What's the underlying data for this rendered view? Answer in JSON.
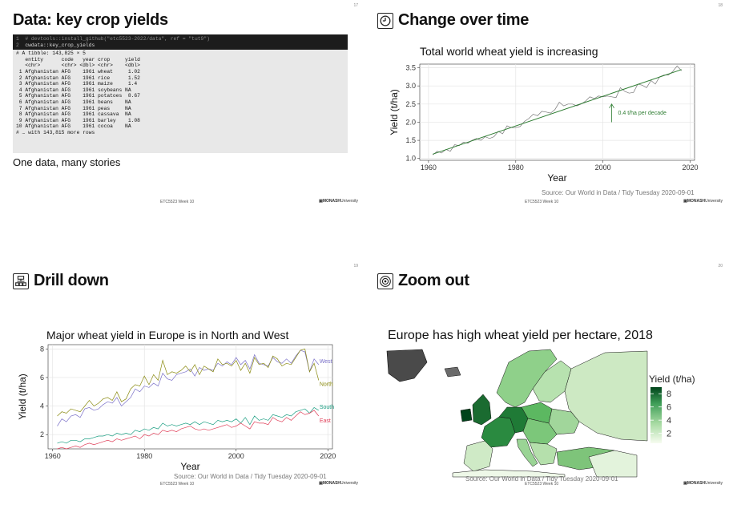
{
  "footer_text": "ETC5523 Week 10",
  "logo_text": "MONASH",
  "logo_uni": "University",
  "slides": [
    {
      "number": "17",
      "title": "Data: key crop yields",
      "code_cmd": [
        {
          "num": "1",
          "text": "# devtools::install_github(\"etc5523-2022/data\", ref = \"tut9\")"
        },
        {
          "num": "2",
          "text": "cwdata::key_crop_yields"
        }
      ],
      "output": [
        "# A tibble: 143,825 × 5",
        "   entity      code   year crop     yield",
        "   <chr>       <chr> <dbl> <chr>    <dbl>",
        " 1 Afghanistan AFG    1961 wheat     1.02",
        " 2 Afghanistan AFG    1961 rice      1.52",
        " 3 Afghanistan AFG    1961 maize     1.4",
        " 4 Afghanistan AFG    1961 soybeans NA",
        " 5 Afghanistan AFG    1961 potatoes  8.67",
        " 6 Afghanistan AFG    1961 beans    NA",
        " 7 Afghanistan AFG    1961 peas     NA",
        " 8 Afghanistan AFG    1961 cassava  NA",
        " 9 Afghanistan AFG    1961 barley    1.08",
        "10 Afghanistan AFG    1961 cocoa    NA",
        "# … with 143,815 more rows"
      ],
      "subtitle": "One data, many stories"
    },
    {
      "number": "18",
      "title": "Change over time",
      "icon": "clock-icon",
      "source": "Source: Our World in Data / Tidy Tuesday 2020-09-01"
    },
    {
      "number": "19",
      "title": "Drill down",
      "icon": "hierarchy-icon",
      "source": "Source: Our World in Data / Tidy Tuesday 2020-09-01"
    },
    {
      "number": "20",
      "title": "Zoom out",
      "icon": "target-icon",
      "source": "Source: Our World in Data / Tidy Tuesday 2020-09-01"
    }
  ],
  "chart_data": [
    {
      "type": "line",
      "title": "Total world wheat yield is increasing",
      "xlabel": "Year",
      "ylabel": "Yield (t/ha)",
      "xlim": [
        1958,
        2021
      ],
      "ylim": [
        0.95,
        3.6
      ],
      "xticks": [
        1960,
        1980,
        2000,
        2020
      ],
      "yticks": [
        1.0,
        1.5,
        2.0,
        2.5,
        3.0,
        3.5
      ],
      "grid": true,
      "series": [
        {
          "color": "#777777",
          "x": [
            1961,
            1962,
            1963,
            1964,
            1965,
            1966,
            1967,
            1968,
            1969,
            1970,
            1971,
            1972,
            1973,
            1974,
            1975,
            1976,
            1977,
            1978,
            1979,
            1980,
            1981,
            1982,
            1983,
            1984,
            1985,
            1986,
            1987,
            1988,
            1989,
            1990,
            1991,
            1992,
            1993,
            1994,
            1995,
            1996,
            1997,
            1998,
            1999,
            2000,
            2001,
            2002,
            2003,
            2004,
            2005,
            2006,
            2007,
            2008,
            2009,
            2010,
            2011,
            2012,
            2013,
            2014,
            2015,
            2016,
            2017,
            2018
          ],
          "values": [
            1.1,
            1.2,
            1.15,
            1.25,
            1.2,
            1.38,
            1.35,
            1.45,
            1.42,
            1.5,
            1.55,
            1.5,
            1.6,
            1.55,
            1.6,
            1.75,
            1.68,
            1.9,
            1.85,
            1.85,
            1.88,
            2.02,
            2.1,
            2.22,
            2.18,
            2.3,
            2.28,
            2.25,
            2.35,
            2.55,
            2.45,
            2.5,
            2.5,
            2.45,
            2.5,
            2.58,
            2.7,
            2.65,
            2.72,
            2.7,
            2.72,
            2.7,
            2.68,
            2.95,
            2.85,
            2.8,
            2.82,
            3.05,
            3.02,
            2.95,
            3.15,
            3.05,
            3.25,
            3.3,
            3.3,
            3.4,
            3.55,
            3.42
          ]
        },
        {
          "color": "#2e7d32",
          "x": [
            1961,
            2018
          ],
          "values": [
            1.12,
            3.45
          ]
        }
      ],
      "annotations": [
        {
          "text": "0.4 t/ha per decade",
          "x": 2002,
          "y": 2.0,
          "arrow_to_y": 2.5,
          "color": "#2e7d32"
        }
      ]
    },
    {
      "type": "line",
      "title": "Major wheat yield in Europe is in North and West",
      "xlabel": "Year",
      "ylabel": "Yield (t/ha)",
      "xlim": [
        1959,
        2021
      ],
      "ylim": [
        1.0,
        8.3
      ],
      "xticks": [
        1960,
        1980,
        2000,
        2020
      ],
      "yticks": [
        2,
        4,
        6,
        8
      ],
      "grid": true,
      "x": [
        1961,
        1962,
        1963,
        1964,
        1965,
        1966,
        1967,
        1968,
        1969,
        1970,
        1971,
        1972,
        1973,
        1974,
        1975,
        1976,
        1977,
        1978,
        1979,
        1980,
        1981,
        1982,
        1983,
        1984,
        1985,
        1986,
        1987,
        1988,
        1989,
        1990,
        1991,
        1992,
        1993,
        1994,
        1995,
        1996,
        1997,
        1998,
        1999,
        2000,
        2001,
        2002,
        2003,
        2004,
        2005,
        2006,
        2007,
        2008,
        2009,
        2010,
        2011,
        2012,
        2013,
        2014,
        2015,
        2016,
        2017,
        2018
      ],
      "series": [
        {
          "name": "West",
          "color": "#7a70c8",
          "values": [
            2.6,
            3.1,
            2.9,
            3.3,
            3.4,
            3.2,
            3.8,
            3.9,
            3.7,
            3.8,
            4.1,
            4.3,
            4.2,
            4.6,
            4.0,
            4.3,
            4.6,
            5.2,
            5.0,
            5.4,
            5.3,
            5.6,
            5.4,
            6.3,
            5.9,
            5.8,
            6.2,
            6.3,
            6.4,
            6.6,
            6.1,
            6.7,
            6.5,
            6.6,
            6.5,
            7.0,
            6.8,
            7.1,
            6.9,
            7.4,
            6.9,
            7.2,
            6.6,
            7.6,
            7.0,
            6.9,
            6.8,
            7.4,
            7.1,
            7.0,
            7.3,
            7.0,
            7.5,
            7.9,
            7.8,
            6.4,
            7.3,
            6.9
          ]
        },
        {
          "name": "North",
          "color": "#8a8a10",
          "values": [
            3.3,
            3.6,
            3.5,
            3.8,
            3.7,
            3.6,
            4.0,
            4.4,
            4.0,
            4.2,
            4.5,
            4.6,
            4.4,
            5.0,
            4.3,
            4.5,
            5.2,
            5.5,
            5.4,
            6.1,
            5.5,
            6.2,
            5.8,
            7.2,
            6.2,
            6.4,
            6.3,
            6.5,
            6.8,
            6.4,
            6.9,
            6.2,
            6.8,
            6.6,
            6.4,
            7.3,
            6.9,
            7.0,
            6.8,
            7.2,
            6.5,
            7.0,
            6.3,
            7.4,
            6.9,
            7.0,
            6.7,
            7.5,
            7.3,
            6.8,
            7.0,
            6.9,
            7.4,
            7.9,
            8.0,
            6.4,
            7.0,
            5.8
          ]
        },
        {
          "name": "South",
          "color": "#1a9e82",
          "values": [
            1.4,
            1.5,
            1.4,
            1.6,
            1.6,
            1.5,
            1.7,
            1.7,
            1.8,
            1.9,
            1.9,
            2.0,
            1.9,
            2.1,
            2.0,
            2.1,
            2.0,
            2.3,
            2.2,
            2.4,
            2.3,
            2.5,
            2.4,
            2.8,
            2.6,
            2.7,
            2.6,
            2.7,
            2.8,
            2.7,
            2.9,
            2.7,
            2.9,
            2.8,
            2.7,
            3.0,
            2.9,
            3.0,
            2.9,
            3.1,
            2.8,
            3.2,
            2.7,
            3.3,
            3.0,
            3.1,
            3.0,
            3.4,
            3.3,
            3.2,
            3.4,
            3.3,
            3.6,
            3.7,
            3.8,
            3.5,
            3.9,
            3.7
          ]
        },
        {
          "name": "East",
          "color": "#e0405a",
          "values": [
            1.0,
            1.1,
            1.0,
            1.1,
            1.2,
            1.1,
            1.3,
            1.4,
            1.3,
            1.4,
            1.5,
            1.6,
            1.5,
            1.7,
            1.6,
            1.7,
            1.8,
            1.9,
            1.7,
            2.0,
            1.9,
            2.1,
            2.0,
            2.3,
            2.2,
            2.3,
            2.2,
            2.4,
            2.5,
            2.6,
            2.4,
            2.3,
            2.4,
            2.3,
            2.4,
            2.5,
            2.6,
            2.7,
            2.5,
            2.6,
            2.8,
            2.6,
            2.4,
            2.9,
            2.8,
            2.8,
            2.7,
            3.2,
            3.0,
            2.9,
            3.2,
            3.0,
            3.3,
            3.6,
            3.4,
            3.5,
            3.7,
            3.3
          ]
        }
      ]
    },
    {
      "type": "choropleth",
      "title": "Europe has high wheat yield per hectare, 2018",
      "legend_title": "Yield (t/ha)",
      "legend_ticks": [
        2,
        4,
        6,
        8
      ],
      "legend_range": [
        0.5,
        9
      ],
      "color_low": "#f7fcf0",
      "color_high": "#00441b"
    }
  ]
}
